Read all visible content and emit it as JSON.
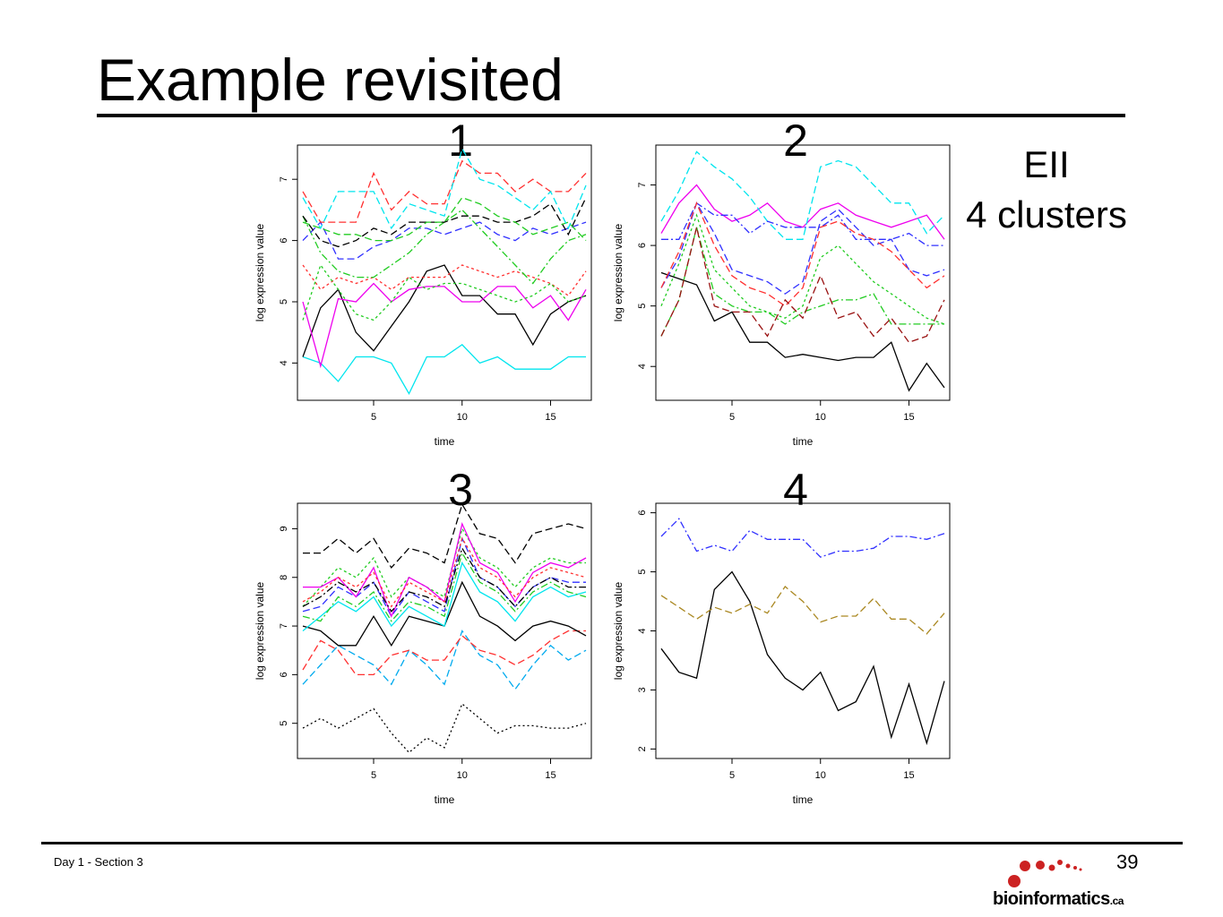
{
  "slide": {
    "title": "Example revisited",
    "note_line1": "EII",
    "note_line2": "4 clusters",
    "footer": "Day 1 - Section 3",
    "page_number": "39",
    "logo_text": "bioinformatics",
    "logo_suffix": ".ca",
    "colors": {
      "logo_red": "#cc2222",
      "text": "#000000"
    }
  },
  "chart_data": [
    {
      "type": "line",
      "panel_label": "1",
      "xlabel": "time",
      "ylabel": "log expression value",
      "xlim": [
        1,
        17
      ],
      "ylim": [
        3.45,
        7.5
      ],
      "xticks": [
        5,
        10,
        15
      ],
      "yticks": [
        4,
        5,
        6,
        7
      ],
      "x": [
        1,
        2,
        3,
        4,
        5,
        6,
        7,
        8,
        9,
        10,
        11,
        12,
        13,
        14,
        15,
        16,
        17
      ],
      "series": [
        {
          "color": "#00e5ee",
          "dash": "",
          "values": [
            4.1,
            4.0,
            3.7,
            4.1,
            4.1,
            4.0,
            3.5,
            4.1,
            4.1,
            4.3,
            4.0,
            4.1,
            3.9,
            3.9,
            3.9,
            4.1,
            4.1
          ]
        },
        {
          "color": "#000000",
          "dash": "",
          "values": [
            4.1,
            4.9,
            5.2,
            4.5,
            4.2,
            4.6,
            5.0,
            5.5,
            5.6,
            5.1,
            5.1,
            4.8,
            4.8,
            4.3,
            4.8,
            5.0,
            5.1
          ]
        },
        {
          "color": "#ee00ee",
          "dash": "",
          "values": [
            5.0,
            3.95,
            5.05,
            5.0,
            5.3,
            5.0,
            5.2,
            5.25,
            5.25,
            5.0,
            5.0,
            5.25,
            5.25,
            4.9,
            5.1,
            4.7,
            5.2
          ]
        },
        {
          "color": "#ff3030",
          "dash": "3,3",
          "values": [
            5.6,
            5.2,
            5.4,
            5.3,
            5.4,
            5.2,
            5.4,
            5.4,
            5.4,
            5.6,
            5.5,
            5.4,
            5.5,
            5.4,
            5.3,
            5.1,
            5.5
          ]
        },
        {
          "color": "#22cc22",
          "dash": "3,3",
          "values": [
            4.7,
            5.6,
            5.2,
            4.8,
            4.7,
            5.0,
            5.4,
            5.2,
            5.3,
            5.3,
            5.2,
            5.1,
            5.0,
            5.1,
            5.3,
            5.0,
            5.1
          ]
        },
        {
          "color": "#22cc22",
          "dash": "8,3,2,3",
          "values": [
            6.4,
            5.8,
            5.5,
            5.4,
            5.4,
            5.6,
            5.8,
            6.1,
            6.3,
            6.5,
            6.2,
            5.9,
            5.6,
            5.3,
            5.7,
            6.0,
            6.1
          ]
        },
        {
          "color": "#3030ff",
          "dash": "8,4",
          "values": [
            6.0,
            6.3,
            5.7,
            5.7,
            5.9,
            6.0,
            6.2,
            6.2,
            6.1,
            6.2,
            6.3,
            6.1,
            6.0,
            6.2,
            6.1,
            6.2,
            6.3
          ]
        },
        {
          "color": "#000000",
          "dash": "8,4",
          "values": [
            6.4,
            6.0,
            5.9,
            6.0,
            6.2,
            6.1,
            6.3,
            6.3,
            6.3,
            6.4,
            6.4,
            6.3,
            6.3,
            6.4,
            6.6,
            6.1,
            6.7
          ]
        },
        {
          "color": "#22cc22",
          "dash": "8,4",
          "values": [
            6.3,
            6.2,
            6.1,
            6.1,
            6.0,
            6.0,
            6.1,
            6.3,
            6.3,
            6.7,
            6.6,
            6.4,
            6.3,
            6.1,
            6.2,
            6.3,
            6.0
          ]
        },
        {
          "color": "#ff3030",
          "dash": "8,4",
          "values": [
            6.8,
            6.3,
            6.3,
            6.3,
            7.1,
            6.5,
            6.8,
            6.6,
            6.6,
            7.3,
            7.1,
            7.1,
            6.8,
            7.0,
            6.8,
            6.8,
            7.1
          ]
        },
        {
          "color": "#00e5ee",
          "dash": "8,4",
          "values": [
            6.7,
            6.2,
            6.8,
            6.8,
            6.8,
            6.2,
            6.6,
            6.5,
            6.4,
            7.5,
            7.0,
            6.9,
            6.7,
            6.5,
            6.8,
            6.2,
            6.9
          ]
        }
      ]
    },
    {
      "type": "line",
      "panel_label": "2",
      "xlabel": "time",
      "ylabel": "log expression value",
      "xlim": [
        1,
        17
      ],
      "ylim": [
        3.5,
        7.6
      ],
      "xticks": [
        5,
        10,
        15
      ],
      "yticks": [
        4,
        5,
        6,
        7
      ],
      "x": [
        1,
        2,
        3,
        4,
        5,
        6,
        7,
        8,
        9,
        10,
        11,
        12,
        13,
        14,
        15,
        16,
        17
      ],
      "series": [
        {
          "color": "#000000",
          "dash": "",
          "values": [
            5.55,
            5.45,
            5.35,
            4.75,
            4.9,
            4.4,
            4.4,
            4.15,
            4.2,
            4.15,
            4.1,
            4.15,
            4.15,
            4.4,
            3.6,
            4.05,
            3.65
          ]
        },
        {
          "color": "#ee00ee",
          "dash": "",
          "values": [
            6.2,
            6.7,
            7.0,
            6.6,
            6.4,
            6.5,
            6.7,
            6.4,
            6.3,
            6.6,
            6.7,
            6.5,
            6.4,
            6.3,
            6.4,
            6.5,
            6.1
          ]
        },
        {
          "color": "#00e5ee",
          "dash": "8,4",
          "values": [
            6.4,
            6.9,
            7.55,
            7.3,
            7.1,
            6.8,
            6.4,
            6.1,
            6.1,
            7.3,
            7.4,
            7.3,
            7.0,
            6.7,
            6.7,
            6.2,
            6.5
          ]
        },
        {
          "color": "#3030ff",
          "dash": "8,4",
          "values": [
            5.3,
            5.8,
            6.7,
            6.2,
            5.6,
            5.5,
            5.4,
            5.2,
            5.4,
            6.4,
            6.6,
            6.3,
            6.0,
            6.1,
            5.6,
            5.5,
            5.6
          ]
        },
        {
          "color": "#3030ff",
          "dash": "8,3,2,3",
          "values": [
            6.1,
            6.1,
            6.7,
            6.5,
            6.5,
            6.2,
            6.4,
            6.3,
            6.3,
            6.3,
            6.5,
            6.1,
            6.1,
            6.1,
            6.2,
            6.0,
            6.0
          ]
        },
        {
          "color": "#ff3030",
          "dash": "8,4",
          "values": [
            5.3,
            5.9,
            6.7,
            6.0,
            5.5,
            5.3,
            5.2,
            5.0,
            5.3,
            6.3,
            6.4,
            6.2,
            6.1,
            5.9,
            5.6,
            5.3,
            5.5
          ]
        },
        {
          "color": "#22cc22",
          "dash": "3,3",
          "values": [
            5.0,
            5.7,
            6.5,
            5.6,
            5.3,
            5.0,
            4.9,
            4.8,
            5.0,
            5.8,
            6.0,
            5.7,
            5.4,
            5.2,
            5.0,
            4.8,
            4.7
          ]
        },
        {
          "color": "#22cc22",
          "dash": "8,3,2,3",
          "values": [
            4.5,
            5.1,
            6.3,
            5.2,
            5.0,
            4.9,
            4.9,
            4.7,
            4.9,
            5.0,
            5.1,
            5.1,
            5.2,
            4.7,
            4.7,
            4.7,
            4.7
          ]
        },
        {
          "color": "#991111",
          "dash": "8,4",
          "values": [
            4.5,
            5.1,
            6.3,
            5.0,
            4.9,
            4.9,
            4.5,
            5.1,
            4.8,
            5.5,
            4.8,
            4.9,
            4.5,
            4.8,
            4.4,
            4.5,
            5.1
          ]
        }
      ]
    },
    {
      "type": "line",
      "panel_label": "3",
      "xlabel": "time",
      "ylabel": "log expression value",
      "xlim": [
        1,
        17
      ],
      "ylim": [
        4.35,
        9.45
      ],
      "xticks": [
        5,
        10,
        15
      ],
      "yticks": [
        5,
        6,
        7,
        8,
        9
      ],
      "x": [
        1,
        2,
        3,
        4,
        5,
        6,
        7,
        8,
        9,
        10,
        11,
        12,
        13,
        14,
        15,
        16,
        17
      ],
      "series": [
        {
          "color": "#000000",
          "dash": "2,3",
          "values": [
            4.9,
            5.1,
            4.9,
            5.1,
            5.3,
            4.8,
            4.4,
            4.7,
            4.5,
            5.4,
            5.1,
            4.8,
            4.95,
            4.95,
            4.9,
            4.9,
            5.0
          ]
        },
        {
          "color": "#00aaee",
          "dash": "8,4",
          "values": [
            5.8,
            6.2,
            6.6,
            6.4,
            6.2,
            5.8,
            6.5,
            6.2,
            5.8,
            6.9,
            6.4,
            6.2,
            5.7,
            6.2,
            6.6,
            6.3,
            6.5
          ]
        },
        {
          "color": "#ff3030",
          "dash": "8,4",
          "values": [
            6.1,
            6.7,
            6.5,
            6.0,
            6.0,
            6.4,
            6.5,
            6.3,
            6.3,
            6.8,
            6.5,
            6.4,
            6.2,
            6.4,
            6.7,
            6.9,
            6.9
          ]
        },
        {
          "color": "#000000",
          "dash": "",
          "values": [
            7.0,
            6.9,
            6.6,
            6.6,
            7.2,
            6.6,
            7.2,
            7.1,
            7.0,
            7.9,
            7.2,
            7.0,
            6.7,
            7.0,
            7.1,
            7.0,
            6.8
          ]
        },
        {
          "color": "#00e5ee",
          "dash": "",
          "values": [
            6.9,
            7.2,
            7.5,
            7.3,
            7.6,
            7.0,
            7.4,
            7.2,
            7.0,
            8.3,
            7.7,
            7.5,
            7.1,
            7.6,
            7.8,
            7.6,
            7.7
          ]
        },
        {
          "color": "#3030ff",
          "dash": "8,4",
          "values": [
            7.3,
            7.4,
            7.8,
            7.6,
            7.9,
            7.2,
            7.7,
            7.5,
            7.3,
            8.8,
            8.0,
            7.8,
            7.4,
            7.8,
            8.0,
            7.9,
            7.9
          ]
        },
        {
          "color": "#22cc22",
          "dash": "8,3,2,3",
          "values": [
            7.2,
            7.1,
            7.6,
            7.4,
            7.7,
            7.1,
            7.5,
            7.4,
            7.2,
            8.5,
            7.9,
            7.7,
            7.3,
            7.7,
            7.9,
            7.7,
            7.6
          ]
        },
        {
          "color": "#22cc22",
          "dash": "3,3",
          "values": [
            7.4,
            7.8,
            8.2,
            8.0,
            8.4,
            7.6,
            8.0,
            7.8,
            7.6,
            9.0,
            8.4,
            8.2,
            7.8,
            8.2,
            8.4,
            8.3,
            8.3
          ]
        },
        {
          "color": "#ee00ee",
          "dash": "",
          "values": [
            7.8,
            7.8,
            8.0,
            7.6,
            8.2,
            7.2,
            8.0,
            7.8,
            7.5,
            9.1,
            8.3,
            8.1,
            7.5,
            8.1,
            8.3,
            8.2,
            8.4
          ]
        },
        {
          "color": "#ff3030",
          "dash": "3,3",
          "values": [
            7.5,
            7.7,
            8.0,
            7.8,
            8.1,
            7.4,
            7.9,
            7.7,
            7.5,
            8.8,
            8.2,
            8.0,
            7.6,
            8.0,
            8.2,
            8.1,
            8.0
          ]
        },
        {
          "color": "#000000",
          "dash": "8,3,2,3",
          "values": [
            7.4,
            7.6,
            7.9,
            7.7,
            7.9,
            7.3,
            7.7,
            7.6,
            7.4,
            8.6,
            8.0,
            7.8,
            7.4,
            7.8,
            8.0,
            7.8,
            7.8
          ]
        },
        {
          "color": "#000000",
          "dash": "8,4",
          "values": [
            8.5,
            8.5,
            8.8,
            8.5,
            8.8,
            8.2,
            8.6,
            8.5,
            8.3,
            9.5,
            8.9,
            8.8,
            8.3,
            8.9,
            9.0,
            9.1,
            9.0
          ]
        }
      ]
    },
    {
      "type": "line",
      "panel_label": "4",
      "xlabel": "time",
      "ylabel": "log expression value",
      "xlim": [
        1,
        17
      ],
      "ylim": [
        1.9,
        6.1
      ],
      "xticks": [
        5,
        10,
        15
      ],
      "yticks": [
        2,
        3,
        4,
        5,
        6
      ],
      "x": [
        1,
        2,
        3,
        4,
        5,
        6,
        7,
        8,
        9,
        10,
        11,
        12,
        13,
        14,
        15,
        16,
        17
      ],
      "series": [
        {
          "color": "#000000",
          "dash": "",
          "values": [
            3.7,
            3.3,
            3.2,
            4.7,
            5.0,
            4.5,
            3.6,
            3.2,
            3.0,
            3.3,
            2.65,
            2.8,
            3.4,
            2.2,
            3.1,
            2.1,
            3.15
          ]
        },
        {
          "color": "#aa8822",
          "dash": "8,4",
          "values": [
            4.6,
            4.4,
            4.2,
            4.4,
            4.3,
            4.45,
            4.3,
            4.75,
            4.5,
            4.15,
            4.25,
            4.25,
            4.55,
            4.2,
            4.2,
            3.95,
            4.3
          ]
        },
        {
          "color": "#3030ff",
          "dash": "8,3,2,3",
          "values": [
            5.6,
            5.9,
            5.35,
            5.45,
            5.35,
            5.7,
            5.55,
            5.55,
            5.55,
            5.25,
            5.35,
            5.35,
            5.4,
            5.6,
            5.6,
            5.55,
            5.65
          ]
        }
      ]
    }
  ]
}
